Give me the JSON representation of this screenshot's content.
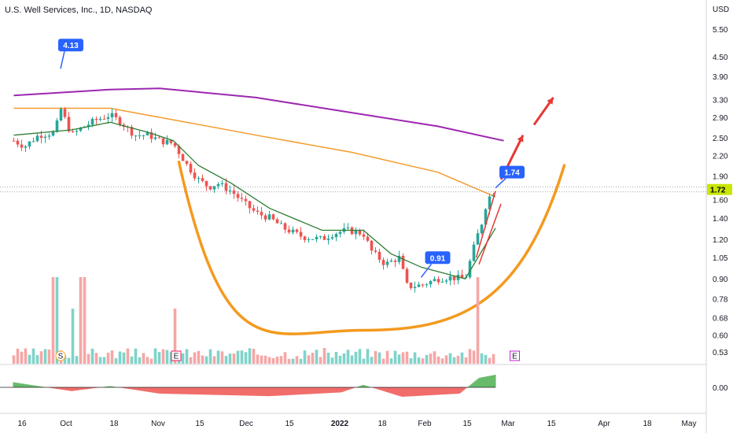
{
  "header": {
    "title": "U.S. Well Services, Inc., 1D, NASDAQ"
  },
  "colors": {
    "up": "#26a69a",
    "down": "#ef5350",
    "ma200": "#f59b2d",
    "ma_long": "#9c27b0",
    "ma_short": "#2e7d32",
    "cup": "#f39a1e",
    "arrow": "#e53935",
    "callout": "#2962ff",
    "price_label": "#c8e600",
    "vol_up": "#7fd3c9",
    "vol_down": "#f5a6a6"
  },
  "chart_data": {
    "type": "candlestick",
    "currency": "USD",
    "price_axis_scale": "log",
    "y_ticks": [
      "5.50",
      "4.50",
      "3.90",
      "3.30",
      "2.90",
      "2.50",
      "2.20",
      "1.90",
      "1.60",
      "1.40",
      "1.20",
      "1.05",
      "0.90",
      "0.78",
      "0.68",
      "0.60",
      "0.53"
    ],
    "oscillator_tick": "0.00",
    "x_ticks": [
      "16",
      "Oct",
      "18",
      "Nov",
      "15",
      "Dec",
      "15",
      "2022",
      "18",
      "Feb",
      "15",
      "Mar",
      "15",
      "Apr",
      "18",
      "May"
    ],
    "last_price": "1.72",
    "annotations": [
      {
        "label": "4.13",
        "date": "2021-09-30"
      },
      {
        "label": "0.91",
        "date": "2022-02-08"
      },
      {
        "label": "1.74",
        "date": "2022-03-07"
      }
    ],
    "event_markers": [
      {
        "label": "S",
        "date": "2021-09-30"
      },
      {
        "label": "E",
        "date": "2021-11-11"
      },
      {
        "label": "E",
        "date": "2022-03-14"
      }
    ],
    "close_trend": [
      {
        "date": "2021-09-13",
        "price": 2.45
      },
      {
        "date": "2021-09-17",
        "price": 2.35
      },
      {
        "date": "2021-09-22",
        "price": 2.55
      },
      {
        "date": "2021-09-28",
        "price": 2.6
      },
      {
        "date": "2021-09-30",
        "price": 3.1
      },
      {
        "date": "2021-10-04",
        "price": 2.55
      },
      {
        "date": "2021-10-08",
        "price": 2.7
      },
      {
        "date": "2021-10-13",
        "price": 2.85
      },
      {
        "date": "2021-10-18",
        "price": 2.95
      },
      {
        "date": "2021-10-22",
        "price": 2.8
      },
      {
        "date": "2021-10-27",
        "price": 2.55
      },
      {
        "date": "2021-11-01",
        "price": 2.55
      },
      {
        "date": "2021-11-05",
        "price": 2.45
      },
      {
        "date": "2021-11-10",
        "price": 2.4
      },
      {
        "date": "2021-11-15",
        "price": 2.05
      },
      {
        "date": "2021-11-19",
        "price": 1.85
      },
      {
        "date": "2021-11-23",
        "price": 1.75
      },
      {
        "date": "2021-11-26",
        "price": 1.8
      },
      {
        "date": "2021-12-01",
        "price": 1.7
      },
      {
        "date": "2021-12-06",
        "price": 1.55
      },
      {
        "date": "2021-12-10",
        "price": 1.45
      },
      {
        "date": "2021-12-15",
        "price": 1.4
      },
      {
        "date": "2021-12-20",
        "price": 1.3
      },
      {
        "date": "2021-12-27",
        "price": 1.22
      },
      {
        "date": "2022-01-03",
        "price": 1.2
      },
      {
        "date": "2022-01-07",
        "price": 1.25
      },
      {
        "date": "2022-01-12",
        "price": 1.28
      },
      {
        "date": "2022-01-18",
        "price": 1.25
      },
      {
        "date": "2022-01-21",
        "price": 1.1
      },
      {
        "date": "2022-01-26",
        "price": 1.0
      },
      {
        "date": "2022-01-31",
        "price": 1.05
      },
      {
        "date": "2022-02-03",
        "price": 0.85
      },
      {
        "date": "2022-02-08",
        "price": 0.86
      },
      {
        "date": "2022-02-14",
        "price": 0.9
      },
      {
        "date": "2022-02-18",
        "price": 0.91
      },
      {
        "date": "2022-02-24",
        "price": 0.9
      },
      {
        "date": "2022-02-28",
        "price": 1.2
      },
      {
        "date": "2022-03-02",
        "price": 1.35
      },
      {
        "date": "2022-03-04",
        "price": 1.6
      },
      {
        "date": "2022-03-07",
        "price": 1.72
      }
    ],
    "ma_short": [
      {
        "date": "2021-09-13",
        "price": 2.55
      },
      {
        "date": "2021-10-04",
        "price": 2.65
      },
      {
        "date": "2021-10-18",
        "price": 2.8
      },
      {
        "date": "2021-11-01",
        "price": 2.6
      },
      {
        "date": "2021-11-10",
        "price": 2.45
      },
      {
        "date": "2021-11-19",
        "price": 2.05
      },
      {
        "date": "2021-12-01",
        "price": 1.8
      },
      {
        "date": "2021-12-15",
        "price": 1.5
      },
      {
        "date": "2022-01-03",
        "price": 1.28
      },
      {
        "date": "2022-01-18",
        "price": 1.28
      },
      {
        "date": "2022-01-28",
        "price": 1.08
      },
      {
        "date": "2022-02-08",
        "price": 0.98
      },
      {
        "date": "2022-02-24",
        "price": 0.9
      },
      {
        "date": "2022-03-07",
        "price": 1.3
      }
    ],
    "ma200": [
      {
        "date": "2021-09-13",
        "price": 3.1
      },
      {
        "date": "2021-10-18",
        "price": 3.1
      },
      {
        "date": "2021-11-10",
        "price": 2.85
      },
      {
        "date": "2021-12-10",
        "price": 2.55
      },
      {
        "date": "2022-01-14",
        "price": 2.25
      },
      {
        "date": "2022-02-14",
        "price": 1.95
      },
      {
        "date": "2022-03-07",
        "price": 1.63
      }
    ],
    "ma_long": [
      {
        "date": "2021-09-13",
        "price": 3.4
      },
      {
        "date": "2021-10-18",
        "price": 3.55
      },
      {
        "date": "2021-11-05",
        "price": 3.58
      },
      {
        "date": "2021-12-10",
        "price": 3.35
      },
      {
        "date": "2022-01-14",
        "price": 3.0
      },
      {
        "date": "2022-02-14",
        "price": 2.72
      },
      {
        "date": "2022-03-10",
        "price": 2.45
      }
    ],
    "cup_pattern": {
      "left_rim": {
        "date": "2021-11-12",
        "price": 2.1
      },
      "bottom": {
        "date": "2022-01-18",
        "price": 0.62
      },
      "right_rim": {
        "date": "2022-04-01",
        "price": 2.05
      }
    },
    "breakout_arrows": [
      {
        "from": {
          "date": "2022-03-09",
          "price": 1.85
        },
        "to": {
          "date": "2022-03-17",
          "price": 2.55
        }
      },
      {
        "from": {
          "date": "2022-03-21",
          "price": 2.75
        },
        "to": {
          "date": "2022-03-28",
          "price": 3.35
        }
      }
    ],
    "volume_peaks": [
      {
        "date": "2021-09-28",
        "level": "high"
      },
      {
        "date": "2021-10-04",
        "level": "medium"
      },
      {
        "date": "2021-10-08",
        "level": "high"
      },
      {
        "date": "2021-11-11",
        "level": "medium"
      },
      {
        "date": "2022-03-01",
        "level": "high"
      }
    ],
    "oscillator": [
      {
        "date": "2021-09-13",
        "value": 0.08
      },
      {
        "date": "2021-10-04",
        "value": -0.06
      },
      {
        "date": "2021-10-18",
        "value": 0.02
      },
      {
        "date": "2021-11-05",
        "value": -0.1
      },
      {
        "date": "2021-11-25",
        "value": -0.12
      },
      {
        "date": "2021-12-15",
        "value": -0.14
      },
      {
        "date": "2022-01-10",
        "value": -0.08
      },
      {
        "date": "2022-01-18",
        "value": 0.04
      },
      {
        "date": "2022-02-01",
        "value": -0.15
      },
      {
        "date": "2022-02-22",
        "value": -0.1
      },
      {
        "date": "2022-03-01",
        "value": 0.15
      },
      {
        "date": "2022-03-07",
        "value": 0.2
      }
    ]
  }
}
